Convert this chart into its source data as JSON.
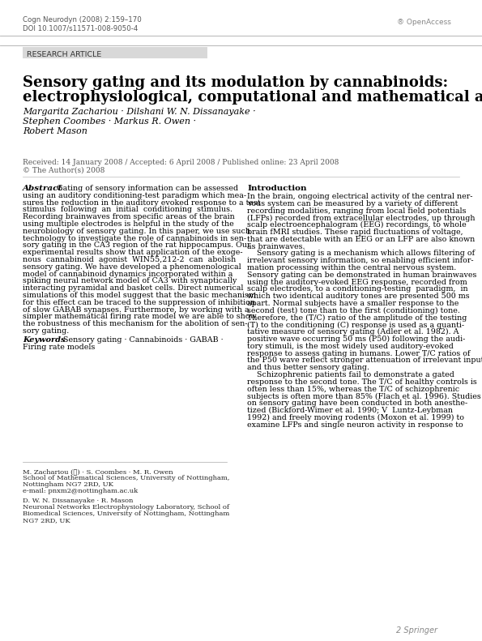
{
  "bg_color": "#ffffff",
  "header_line_color": "#aaaaaa",
  "research_article_bg": "#d8d8d8",
  "journal_line1": "Cogn Neurodyn (2008) 2:159–170",
  "journal_line2": "DOI 10.1007/s11571-008-9050-4",
  "open_access_text": "® OpenAccess",
  "research_article_text": "RESEARCH ARTICLE",
  "title_line1": "Sensory gating and its modulation by cannabinoids:",
  "title_line2": "electrophysiological, computational and mathematical analysis",
  "authors_line1": "Margarita Zachariou · Dilshani W. N. Dissanayake ·",
  "authors_line2": "Stephen Coombes · Markus R. Owen ·",
  "authors_line3": "Robert Mason",
  "received_text": "Received: 14 January 2008 / Accepted: 6 April 2008 / Published online: 23 April 2008",
  "copyright_text": "© The Author(s) 2008",
  "abstract_label": "Abstract",
  "abstract_lines": [
    "Gating of sensory information can be assessed",
    "using an auditory conditioning-test paradigm which mea-",
    "sures the reduction in the auditory evoked response to a test",
    "stimulus  following  an  initial  conditioning  stimulus.",
    "Recording brainwaves from specific areas of the brain",
    "using multiple electrodes is helpful in the study of the",
    "neurobiology of sensory gating. In this paper, we use such",
    "technology to investigate the role of cannabinoids in sen-",
    "sory gating in the CA3 region of the rat hippocampus. Our",
    "experimental results show that application of the exoge-",
    "nous  cannabinoid  agonist  WIN55,212-2  can  abolish",
    "sensory gating. We have developed a phenomenological",
    "model of cannabinoid dynamics incorporated within a",
    "spiking neural network model of CA3 with synaptically",
    "interacting pyramidal and basket cells. Direct numerical",
    "simulations of this model suggest that the basic mechanism",
    "for this effect can be traced to the suppression of inhibition",
    "of slow GABAB synapses. Furthermore, by working with a",
    "simpler mathematical firing rate model we are able to show",
    "the robustness of this mechanism for the abolition of sen-",
    "sory gating."
  ],
  "keywords_label": "Keywords",
  "keywords_line1": "Sensory gating · Cannabinoids · GABAB ·",
  "keywords_line2": "Firing rate models",
  "affil1_line1": "M. Zachariou (✉) · S. Coombes · M. R. Owen",
  "affil1_line2": "School of Mathematical Sciences, University of Nottingham,",
  "affil1_line3": "Nottingham NG7 2RD, UK",
  "affil1_line4": "e-mail: pnxm2@nottingham.ac.uk",
  "affil2_line1": "D. W. N. Dissanayake · R. Mason",
  "affil2_line2": "Neuronal Networks Electrophysiology Laboratory, School of",
  "affil2_line3": "Biomedical Sciences, University of Nottingham, Nottingham",
  "affil2_line4": "NG7 2RD, UK",
  "intro_label": "Introduction",
  "intro_lines": [
    "In the brain, ongoing electrical activity of the central ner-",
    "vous system can be measured by a variety of different",
    "recording modalities, ranging from local field potentials",
    "(LFPs) recorded from extracellular electrodes, up through",
    "scalp electroencephalogram (EEG) recordings, to whole",
    "brain fMRI studies. These rapid fluctuations of voltage,",
    "that are detectable with an EEG or an LFP are also known",
    "as brainwaves.",
    "    Sensory gating is a mechanism which allows filtering of",
    "irrelevant sensory information, so enabling efficient infor-",
    "mation processing within the central nervous system.",
    "Sensory gating can be demonstrated in human brainwaves",
    "using the auditory-evoked EEG response, recorded from",
    "scalp electrodes, to a conditioning-testing  paradigm,  in",
    "which two identical auditory tones are presented 500 ms",
    "apart. Normal subjects have a smaller response to the",
    "second (test) tone than to the first (conditioning) tone.",
    "Therefore, the (T/C) ratio of the amplitude of the testing",
    "(T) to the conditioning (C) response is used as a quanti-",
    "tative measure of sensory gating (Adler et al. 1982). A",
    "positive wave occurring 50 ms (P50) following the audi-",
    "tory stimuli, is the most widely used auditory-evoked",
    "response to assess gating in humans. Lower T/C ratios of",
    "the P50 wave reflect stronger attenuation of irrelevant input",
    "and thus better sensory gating.",
    "    Schizophrenic patients fail to demonstrate a gated",
    "response to the second tone. The T/C of healthy controls is",
    "often less than 15%, whereas the T/C of schizophrenic",
    "subjects is often more than 85% (Flach et al. 1996). Studies",
    "on sensory gating have been conducted in both anesthe-",
    "tized (Bickford-Wimer et al. 1990; V  Luntz-Leybman",
    "1992) and freely moving rodents (Moxon et al. 1999) to",
    "examine LFPs and single neuron activity in response to"
  ],
  "springer_text": "2 Springer"
}
